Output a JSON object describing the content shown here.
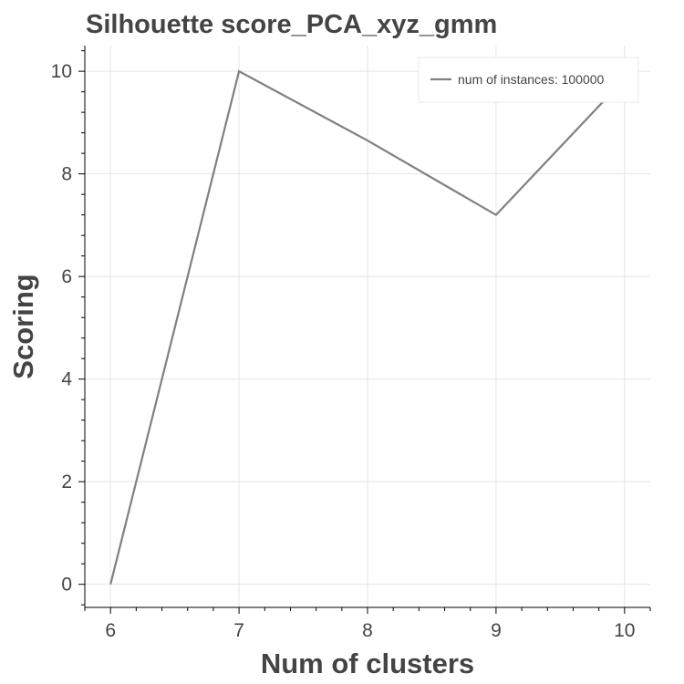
{
  "chart_data": {
    "type": "line",
    "title": "Silhouette score_PCA_xyz_gmm",
    "xlabel": "Num of clusters",
    "ylabel": "Scoring",
    "x": [
      6,
      7,
      8,
      9,
      10
    ],
    "series": [
      {
        "name": "num of instances: 100000",
        "values": [
          0,
          10,
          8.65,
          7.2,
          9.85
        ]
      }
    ],
    "xlim": [
      5.8,
      10.2
    ],
    "ylim": [
      -0.45,
      10.5
    ],
    "xticks": [
      6,
      7,
      8,
      9,
      10
    ],
    "yticks": [
      0,
      2,
      4,
      6,
      8,
      10
    ],
    "grid": true,
    "legend_position": "top-right",
    "colors": {
      "line": "#808080",
      "grid": "#e5e5e5",
      "text": "#444444",
      "axis": "#000000"
    }
  }
}
